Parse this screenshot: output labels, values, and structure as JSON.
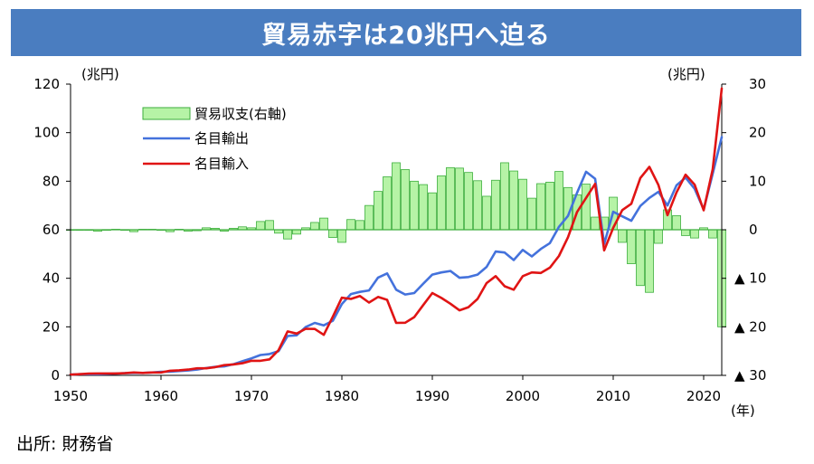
{
  "title": "貿易赤字は20兆円へ迫る",
  "source": "出所: 財務省",
  "colors": {
    "title_bg": "#4a7dc0",
    "balance_fill": "#b6f3a6",
    "balance_stroke": "#3cae3c",
    "export_line": "#4472dc",
    "import_line": "#e01414"
  },
  "chart_data": {
    "type": "bar+line",
    "xlabel": "(年)",
    "ylabel_left": "(兆円)",
    "ylabel_right": "(兆円)",
    "xlim": [
      1950,
      2022
    ],
    "ylim_left": [
      0,
      120
    ],
    "ylim_right": [
      -30,
      30
    ],
    "x_ticks": [
      1950,
      1960,
      1970,
      1980,
      1990,
      2000,
      2010,
      2020
    ],
    "x_tick_labels": [
      "1950",
      "1960",
      "1970",
      "1980",
      "1990",
      "2000",
      "2010",
      "2020"
    ],
    "y_left_ticks": [
      0,
      20,
      40,
      60,
      80,
      100,
      120
    ],
    "y_left_tick_labels": [
      "0",
      "20",
      "40",
      "60",
      "80",
      "100",
      "120"
    ],
    "y_right_ticks": [
      30,
      20,
      10,
      0,
      -10,
      -20,
      -30
    ],
    "y_right_tick_labels": [
      "30",
      "20",
      "10",
      "0",
      "▲ 10",
      "▲ 20",
      "▲ 30"
    ],
    "legend": [
      "貿易収支(右軸)",
      "名目輸出",
      "名目輸入"
    ],
    "years": [
      1950,
      1951,
      1952,
      1953,
      1954,
      1955,
      1956,
      1957,
      1958,
      1959,
      1960,
      1961,
      1962,
      1963,
      1964,
      1965,
      1966,
      1967,
      1968,
      1969,
      1970,
      1971,
      1972,
      1973,
      1974,
      1975,
      1976,
      1977,
      1978,
      1979,
      1980,
      1981,
      1982,
      1983,
      1984,
      1985,
      1986,
      1987,
      1988,
      1989,
      1990,
      1991,
      1992,
      1993,
      1994,
      1995,
      1996,
      1997,
      1998,
      1999,
      2000,
      2001,
      2002,
      2003,
      2004,
      2005,
      2006,
      2007,
      2008,
      2009,
      2010,
      2011,
      2012,
      2013,
      2014,
      2015,
      2016,
      2017,
      2018,
      2019,
      2020,
      2021,
      2022
    ],
    "series": [
      {
        "name": "貿易収支(右軸)",
        "axis": "right",
        "type": "bar",
        "values": [
          0.0,
          0.0,
          0.0,
          -0.3,
          0.0,
          0.1,
          0.0,
          -0.4,
          0.1,
          0.1,
          0.0,
          -0.4,
          0.1,
          -0.3,
          -0.2,
          0.4,
          0.3,
          -0.3,
          0.3,
          0.6,
          0.4,
          1.7,
          1.9,
          -0.7,
          -1.9,
          -0.9,
          0.4,
          1.5,
          2.4,
          -1.6,
          -2.6,
          2.1,
          1.9,
          5.0,
          7.9,
          10.9,
          13.8,
          12.4,
          10.0,
          9.3,
          7.6,
          11.1,
          12.8,
          12.7,
          11.8,
          10.1,
          6.9,
          10.2,
          13.8,
          12.1,
          10.4,
          6.5,
          9.5,
          9.8,
          12.0,
          8.7,
          7.2,
          9.4,
          2.6,
          2.6,
          6.7,
          -2.6,
          -7.0,
          -11.5,
          -12.9,
          -2.8,
          4.1,
          2.9,
          -1.2,
          -1.7,
          0.4,
          -1.7,
          -20.0
        ]
      },
      {
        "name": "名目輸出",
        "axis": "left",
        "type": "line",
        "values": [
          0.3,
          0.5,
          0.5,
          0.5,
          0.6,
          0.7,
          0.9,
          1.0,
          1.0,
          1.2,
          1.5,
          1.5,
          1.8,
          2.0,
          2.4,
          3.0,
          3.5,
          3.7,
          4.6,
          5.8,
          7.0,
          8.4,
          8.8,
          10.0,
          16.2,
          16.5,
          19.9,
          21.6,
          20.6,
          22.5,
          29.4,
          33.5,
          34.4,
          35.0,
          40.3,
          42.0,
          35.3,
          33.3,
          33.9,
          37.8,
          41.5,
          42.4,
          43.0,
          40.2,
          40.5,
          41.5,
          44.7,
          51.0,
          50.6,
          47.5,
          51.7,
          49.0,
          52.1,
          54.5,
          61.2,
          65.7,
          75.2,
          83.9,
          81.0,
          54.1,
          67.4,
          65.5,
          63.7,
          69.8,
          73.1,
          75.6,
          70.0,
          78.3,
          81.5,
          76.9,
          68.4,
          83.1,
          98.2
        ]
      },
      {
        "name": "名目輸入",
        "axis": "left",
        "type": "line",
        "values": [
          0.3,
          0.5,
          0.7,
          0.8,
          0.8,
          0.8,
          0.9,
          1.2,
          1.0,
          1.2,
          1.2,
          1.9,
          2.1,
          2.4,
          2.9,
          2.9,
          3.4,
          4.2,
          4.5,
          5.0,
          6.0,
          6.0,
          6.6,
          10.4,
          18.1,
          17.2,
          19.2,
          19.1,
          16.7,
          24.2,
          32.0,
          31.5,
          32.7,
          30.0,
          32.3,
          31.1,
          21.6,
          21.7,
          24.0,
          29.0,
          33.9,
          31.9,
          29.5,
          26.8,
          28.1,
          31.5,
          38.0,
          40.9,
          36.7,
          35.3,
          40.9,
          42.4,
          42.2,
          44.4,
          49.2,
          56.9,
          67.3,
          73.1,
          78.9,
          51.5,
          60.8,
          68.1,
          70.7,
          81.3,
          85.9,
          78.4,
          66.0,
          75.4,
          82.7,
          78.6,
          68.0,
          84.9,
          118.2
        ]
      }
    ]
  }
}
